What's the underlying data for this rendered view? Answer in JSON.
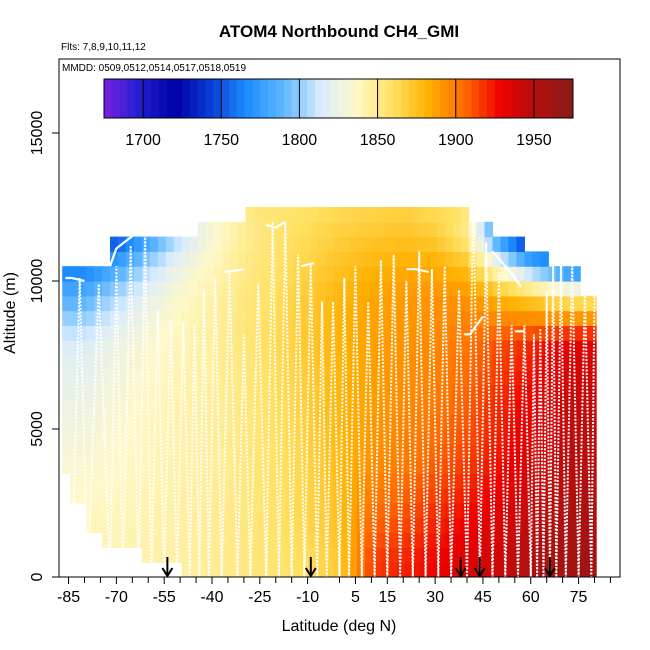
{
  "chart_data": {
    "type": "heatmap",
    "title": "ATOM4 Northbound CH4_GMI",
    "flights_label": "Flts: 7,8,9,10,11,12",
    "dates_label": "MMDD: 0509,0512,0514,0517,0518,0519",
    "xlabel": "Latitude (deg N)",
    "ylabel": "Altitude (m)",
    "xlim": [
      -88,
      88
    ],
    "ylim": [
      0,
      17500
    ],
    "x_ticks": [
      -85,
      -70,
      -55,
      -40,
      -25,
      -10,
      5,
      15,
      30,
      45,
      60,
      75
    ],
    "x_ticks_minor": [
      -80,
      -75,
      -65,
      -60,
      -50,
      -45,
      -35,
      -30,
      -20,
      -15,
      0,
      10,
      20,
      25,
      35,
      40,
      50,
      55,
      65,
      70,
      80,
      85
    ],
    "y_ticks": [
      0,
      5000,
      10000,
      15000
    ],
    "colorbar": {
      "min": 1675,
      "max": 1975,
      "ticks": [
        1700,
        1750,
        1800,
        1850,
        1900,
        1950
      ],
      "colors": [
        "#7a1fe0",
        "#1f1fd0",
        "#0000a8",
        "#0a40d8",
        "#1e90ff",
        "#60b8ff",
        "#d8ecff",
        "#fff8c8",
        "#ffe060",
        "#ffb000",
        "#ff6a00",
        "#ee0000",
        "#b01010",
        "#8a1a1a"
      ]
    },
    "ch4_field": {
      "latitude_edges": [
        -85,
        -75,
        -65,
        -55,
        -45,
        -35,
        -25,
        -15,
        -5,
        5,
        15,
        25,
        35,
        45,
        55,
        65,
        80
      ],
      "altitude_levels_m": [
        500,
        2000,
        4000,
        6000,
        8000,
        9500,
        10500,
        11500,
        12500
      ],
      "ch4_ppb": [
        [
          1840,
          1842,
          1843,
          1845,
          1848,
          1852,
          1856,
          1860,
          1870,
          1915,
          1922,
          1928,
          1935,
          1942,
          1952,
          1960
        ],
        [
          1838,
          1840,
          1842,
          1845,
          1848,
          1853,
          1858,
          1865,
          1875,
          1905,
          1912,
          1920,
          1928,
          1935,
          1945,
          1955
        ],
        [
          1832,
          1836,
          1840,
          1843,
          1846,
          1852,
          1858,
          1866,
          1878,
          1892,
          1900,
          1908,
          1915,
          1925,
          1936,
          1948
        ],
        [
          1825,
          1832,
          1838,
          1842,
          1846,
          1852,
          1860,
          1868,
          1880,
          1888,
          1895,
          1900,
          1908,
          1920,
          1930,
          1944
        ],
        [
          1815,
          1825,
          1833,
          1840,
          1846,
          1854,
          1862,
          1872,
          1882,
          1888,
          1892,
          1896,
          1902,
          1912,
          1920,
          1932
        ],
        [
          1785,
          1805,
          1822,
          1835,
          1844,
          1852,
          1860,
          1870,
          1880,
          1886,
          1890,
          1892,
          1892,
          1880,
          1868,
          1850
        ],
        [
          1760,
          1780,
          1805,
          1825,
          1838,
          1850,
          1858,
          1866,
          1874,
          1880,
          1884,
          1884,
          1875,
          1830,
          1790,
          1755
        ],
        [
          null,
          1745,
          1775,
          1808,
          1832,
          1848,
          1856,
          1862,
          1868,
          1872,
          1874,
          1870,
          1850,
          1770,
          1720,
          null
        ],
        [
          null,
          null,
          null,
          null,
          null,
          null,
          1855,
          1858,
          1862,
          1864,
          1866,
          1860,
          null,
          null,
          null,
          null
        ]
      ]
    },
    "vertical_profiles_latitude": [
      -84,
      -79,
      -72,
      -68,
      -63,
      -59,
      -55,
      -51,
      -47,
      -44,
      -41,
      -37,
      -32,
      -28,
      -23,
      -19,
      -15,
      -11,
      -7,
      -4,
      0,
      3,
      7,
      11,
      15,
      19,
      23,
      27,
      31,
      35,
      40,
      44,
      48,
      52,
      56,
      60,
      62,
      64,
      66,
      68,
      71,
      75,
      79
    ],
    "vertical_profiles_top_m": [
      10100,
      9900,
      10500,
      11200,
      11600,
      9000,
      8700,
      8600,
      8500,
      9700,
      10100,
      10300,
      8200,
      9900,
      12000,
      12000,
      10900,
      10600,
      9300,
      9300,
      10100,
      10500,
      9300,
      10700,
      10900,
      10000,
      11000,
      10400,
      10500,
      9700,
      12900,
      11300,
      10300,
      8500,
      8500,
      8200,
      8400,
      9600,
      10500,
      10600,
      10700,
      9700,
      9500
    ],
    "flight_track_segments": [
      {
        "latitude": [
          -86,
          -84,
          -80
        ],
        "altitude_m": [
          10100,
          10100,
          10000
        ]
      },
      {
        "latitude": [
          -72,
          -70,
          -64
        ],
        "altitude_m": [
          10500,
          11100,
          11600
        ]
      },
      {
        "latitude": [
          -36,
          -30
        ],
        "altitude_m": [
          10300,
          10400
        ]
      },
      {
        "latitude": [
          -23,
          -20,
          -17
        ],
        "altitude_m": [
          11900,
          11800,
          12000
        ]
      },
      {
        "latitude": [
          -12,
          -8
        ],
        "altitude_m": [
          10500,
          10600
        ]
      },
      {
        "latitude": [
          21,
          24,
          28
        ],
        "altitude_m": [
          10400,
          10400,
          10300
        ]
      },
      {
        "latitude": [
          39,
          41,
          45
        ],
        "altitude_m": [
          8200,
          8200,
          8800
        ]
      },
      {
        "latitude": [
          48,
          52,
          55,
          57
        ],
        "altitude_m": [
          11000,
          10500,
          10100,
          9800
        ]
      },
      {
        "latitude": [
          55,
          58
        ],
        "altitude_m": [
          8300,
          8300
        ]
      },
      {
        "latitude": [
          66,
          72
        ],
        "altitude_m": [
          10500,
          11200
        ]
      }
    ],
    "arrow_markers_latitude": [
      -54,
      -9,
      38,
      44,
      66
    ]
  }
}
